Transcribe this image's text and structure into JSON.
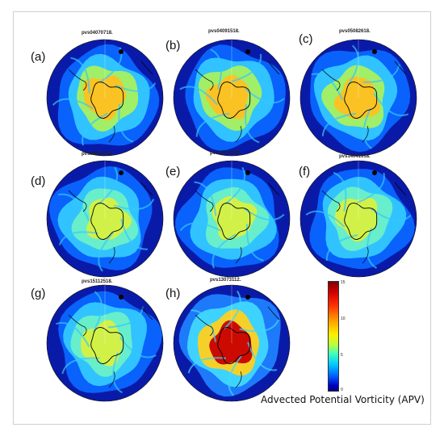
{
  "panels": [
    {
      "label": "(a)",
      "title": "pvs04070718.",
      "intensity": "medium"
    },
    {
      "label": "(b)",
      "title": "pvs04091518.",
      "intensity": "medium"
    },
    {
      "label": "(c)",
      "title": "pvs05082618.",
      "intensity": "medium"
    },
    {
      "label": "(d)",
      "title": "pvs06041218.",
      "intensity": "low"
    },
    {
      "label": "(e)",
      "title": "pvs13073000.",
      "intensity": "low"
    },
    {
      "label": "(f)",
      "title": "pvs14041618.",
      "intensity": "low"
    },
    {
      "label": "(g)",
      "title": "pvs15112518.",
      "intensity": "low"
    },
    {
      "label": "(h)",
      "title": "pvs13073112.",
      "intensity": "high"
    }
  ],
  "colorbar": {
    "ticks": [
      "15",
      "10",
      "5",
      "0"
    ],
    "label": "Advected Potential Vorticity (APV)",
    "colormap": [
      "#00007f",
      "#0000ff",
      "#00bfff",
      "#40ffbf",
      "#ffff00",
      "#ff7f00",
      "#ff0000",
      "#7f0000"
    ]
  }
}
